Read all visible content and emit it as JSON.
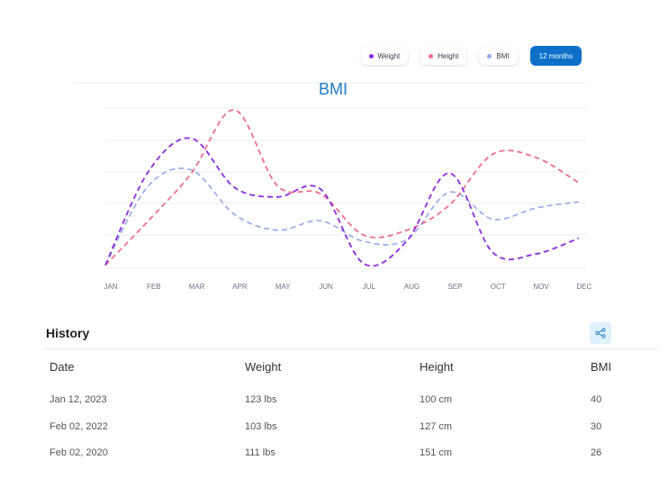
{
  "legend": {
    "weight_label": "Weight",
    "height_label": "Height",
    "bmi_label": "BMI",
    "range_label": "12 months"
  },
  "colors": {
    "weight": "#8b2be2",
    "height": "#ec6f8e",
    "bmi": "#95a8ee",
    "accent": "#0d6fc7",
    "share_bg": "#dff1fb"
  },
  "chart_data": {
    "type": "line",
    "title": "BMI",
    "categories": [
      "JAN",
      "FEB",
      "MAR",
      "APR",
      "MAY",
      "JUN",
      "JUL",
      "AUG",
      "SEP",
      "OCT",
      "NOV",
      "DEC"
    ],
    "ylim": [
      0,
      100
    ],
    "grid": true,
    "legend": "top-right",
    "series": [
      {
        "name": "Weight",
        "values": [
          2,
          61,
          82,
          51,
          45,
          50,
          3,
          17,
          60,
          10,
          9,
          19
        ]
      },
      {
        "name": "Height",
        "values": [
          2,
          30,
          60,
          100,
          52,
          47,
          21,
          24,
          40,
          72,
          70,
          54
        ]
      },
      {
        "name": "BMI",
        "values": [
          2,
          52,
          62,
          34,
          24,
          30,
          17,
          18,
          48,
          31,
          38,
          42
        ]
      }
    ]
  },
  "history": {
    "title": "History",
    "share_icon": "share-icon",
    "columns": [
      "Date",
      "Weight",
      "Height",
      "BMI"
    ],
    "rows": [
      [
        "Jan 12, 2023",
        "123 lbs",
        "100 cm",
        "40"
      ],
      [
        "Feb 02, 2022",
        "103 lbs",
        "127 cm",
        "30"
      ],
      [
        "Feb 02, 2020",
        "111 lbs",
        "151 cm",
        "26"
      ]
    ]
  }
}
